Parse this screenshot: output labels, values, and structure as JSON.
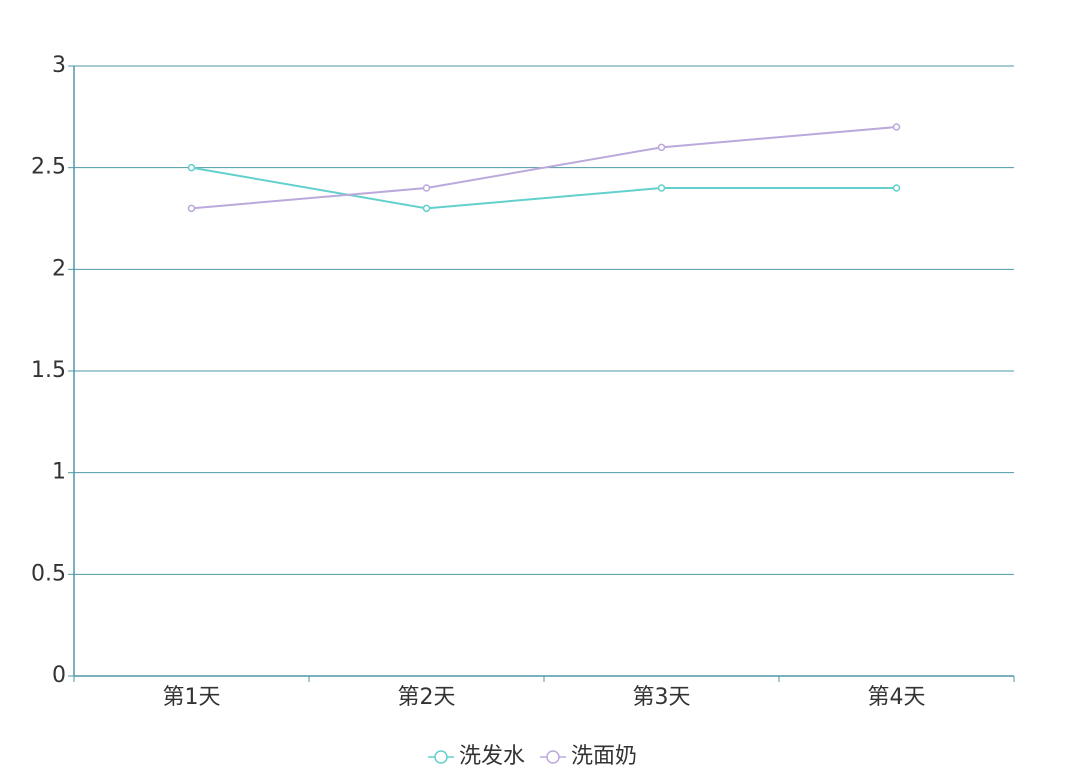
{
  "chart_data": {
    "type": "line",
    "categories": [
      "第1天",
      "第2天",
      "第3天",
      "第4天"
    ],
    "series": [
      {
        "name": "洗发水",
        "color": "#62d0cc",
        "values": [
          2.5,
          2.3,
          2.4,
          2.4
        ]
      },
      {
        "name": "洗面奶",
        "color": "#bba9dc",
        "values": [
          2.3,
          2.4,
          2.6,
          2.7
        ]
      }
    ],
    "ylim": [
      0,
      3
    ],
    "yticks": [
      0,
      0.5,
      1,
      1.5,
      2,
      2.5,
      3
    ],
    "grid": true,
    "legend": "bottom"
  }
}
